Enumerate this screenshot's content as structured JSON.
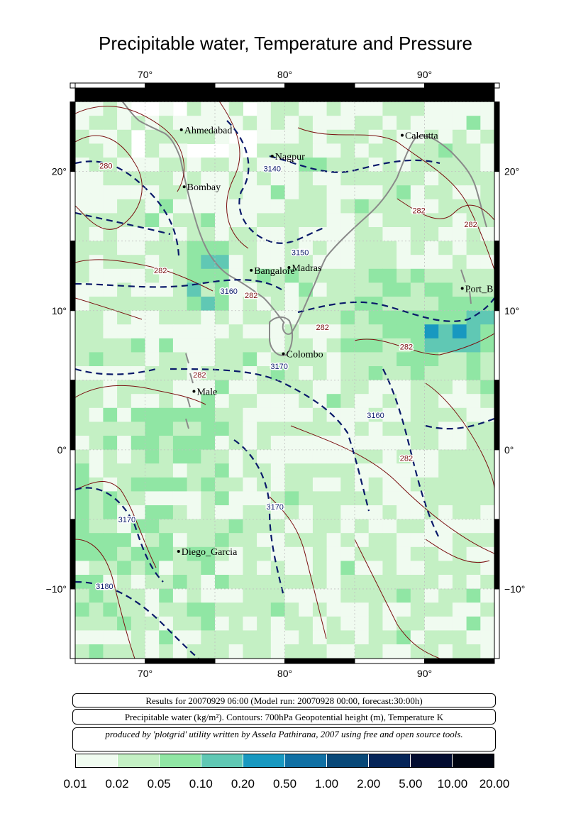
{
  "title": "Precipitable water, Temperature and Pressure",
  "map": {
    "lon_range": [
      65,
      95
    ],
    "lat_range": [
      -15,
      26
    ],
    "lon_ticks": [
      {
        "value": 70,
        "label": "70°"
      },
      {
        "value": 80,
        "label": "80°"
      },
      {
        "value": 90,
        "label": "90°"
      }
    ],
    "lat_ticks": [
      {
        "value": 20,
        "label": "20°"
      },
      {
        "value": 10,
        "label": "10°"
      },
      {
        "value": 0,
        "label": "0°"
      },
      {
        "value": -10,
        "label": "−10°"
      }
    ],
    "cities": [
      {
        "name": "Ahmedabad",
        "lon": 72.6,
        "lat": 23.0
      },
      {
        "name": "Nagpur",
        "lon": 79.1,
        "lat": 21.1
      },
      {
        "name": "Calcutta",
        "lon": 88.4,
        "lat": 22.6
      },
      {
        "name": "Bombay",
        "lon": 72.8,
        "lat": 18.9
      },
      {
        "name": "Madras",
        "lon": 80.3,
        "lat": 13.1
      },
      {
        "name": "Bangalore",
        "lon": 77.6,
        "lat": 12.9
      },
      {
        "name": "Port_B",
        "lon": 92.7,
        "lat": 11.6
      },
      {
        "name": "Colombo",
        "lon": 79.9,
        "lat": 6.9
      },
      {
        "name": "Male",
        "lon": 73.5,
        "lat": 4.2
      },
      {
        "name": "Diego_Garcia",
        "lon": 72.4,
        "lat": -7.3
      }
    ],
    "contour_labels": [
      {
        "text": "280",
        "lon": 67.2,
        "lat": 20.2,
        "color": "#7a1010"
      },
      {
        "text": "3140",
        "lon": 79.1,
        "lat": 20.0,
        "color": "#0a1a6a"
      },
      {
        "text": "282",
        "lon": 89.6,
        "lat": 17.0,
        "color": "#7a1010"
      },
      {
        "text": "282",
        "lon": 93.3,
        "lat": 16.0,
        "color": "#7a1010"
      },
      {
        "text": "3150",
        "lon": 81.1,
        "lat": 14.0,
        "color": "#0a1a6a"
      },
      {
        "text": "282",
        "lon": 71.1,
        "lat": 12.7,
        "color": "#7a1010"
      },
      {
        "text": "3160",
        "lon": 76.0,
        "lat": 11.2,
        "color": "#0a1a6a"
      },
      {
        "text": "282",
        "lon": 77.6,
        "lat": 10.9,
        "color": "#7a1010"
      },
      {
        "text": "282",
        "lon": 82.7,
        "lat": 8.6,
        "color": "#7a1010"
      },
      {
        "text": "282",
        "lon": 88.7,
        "lat": 7.2,
        "color": "#7a1010"
      },
      {
        "text": "3170",
        "lon": 79.6,
        "lat": 5.8,
        "color": "#0a1a6a"
      },
      {
        "text": "282",
        "lon": 73.9,
        "lat": 5.2,
        "color": "#7a1010"
      },
      {
        "text": "3160",
        "lon": 86.5,
        "lat": 2.3,
        "color": "#0a1a6a"
      },
      {
        "text": "282",
        "lon": 88.7,
        "lat": -0.8,
        "color": "#7a1010"
      },
      {
        "text": "3170",
        "lon": 79.3,
        "lat": -4.3,
        "color": "#0a1a6a"
      },
      {
        "text": "3170",
        "lon": 68.7,
        "lat": -5.2,
        "color": "#0a1a6a"
      },
      {
        "text": "3180",
        "lon": 67.1,
        "lat": -10.0,
        "color": "#0a1a6a"
      }
    ]
  },
  "info": {
    "line1": "Results for 20070929 06:00 (Model run: 20070928 00:00, forecast:30:00h)",
    "line2": "Precipitable water (kg/m²).  Contours: 700hPa Geopotential height (m), Temperature K",
    "line3": "produced by 'plotgrid' utility written by Assela Pathirana, 2007 using free and open source tools."
  },
  "colorbar": {
    "colors": [
      "#f0fbf0",
      "#c4f0c4",
      "#90e6a4",
      "#60c8b4",
      "#1898c0",
      "#1070a4",
      "#084878",
      "#042458",
      "#020c30",
      "#000410"
    ],
    "ticks": [
      "0.01",
      "0.02",
      "0.05",
      "0.10",
      "0.20",
      "0.50",
      "1.00",
      "2.00",
      "5.00",
      "10.00",
      "20.00"
    ]
  }
}
